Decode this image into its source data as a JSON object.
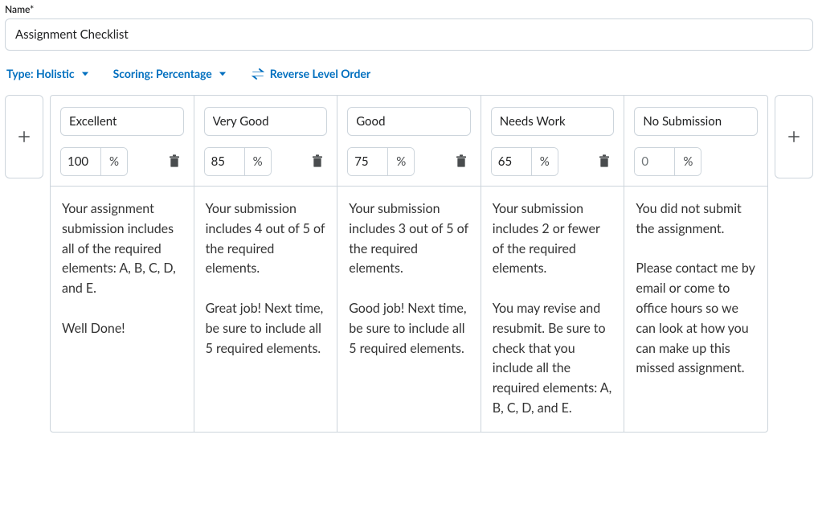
{
  "name_label": "Name*",
  "name_value": "Assignment Checklist",
  "options": {
    "type_label": "Type: Holistic",
    "scoring_label": "Scoring: Percentage",
    "reverse_label": "Reverse Level Order"
  },
  "unit_symbol": "%",
  "levels": [
    {
      "name": "Excellent",
      "score": "100",
      "deletable": true,
      "description": "Your assignment submission includes all of the required elements: A, B, C, D, and E.\n\nWell Done!"
    },
    {
      "name": "Very Good",
      "score": "85",
      "deletable": true,
      "description": "Your submission includes 4 out of 5 of the required elements.\n\nGreat job! Next time, be sure to include all 5 required elements."
    },
    {
      "name": "Good",
      "score": "75",
      "deletable": true,
      "description": "Your submission includes 3 out of 5 of the required elements.\n\nGood job! Next time, be sure to include all 5 required elements."
    },
    {
      "name": "Needs Work",
      "score": "65",
      "deletable": true,
      "description": "Your submission includes 2 or fewer of the required elements.\n\nYou may revise and resubmit. Be sure to check that you include all the required elements: A, B, C, D, and E."
    },
    {
      "name": "No Submission",
      "score": "0",
      "deletable": false,
      "description": "You did not submit the assignment.\n\nPlease contact me by email or come to office hours so we can look at how you can make up this missed assignment."
    }
  ],
  "colors": {
    "link": "#006fbf",
    "border": "#cdd5dc",
    "icon": "#494c4e"
  }
}
